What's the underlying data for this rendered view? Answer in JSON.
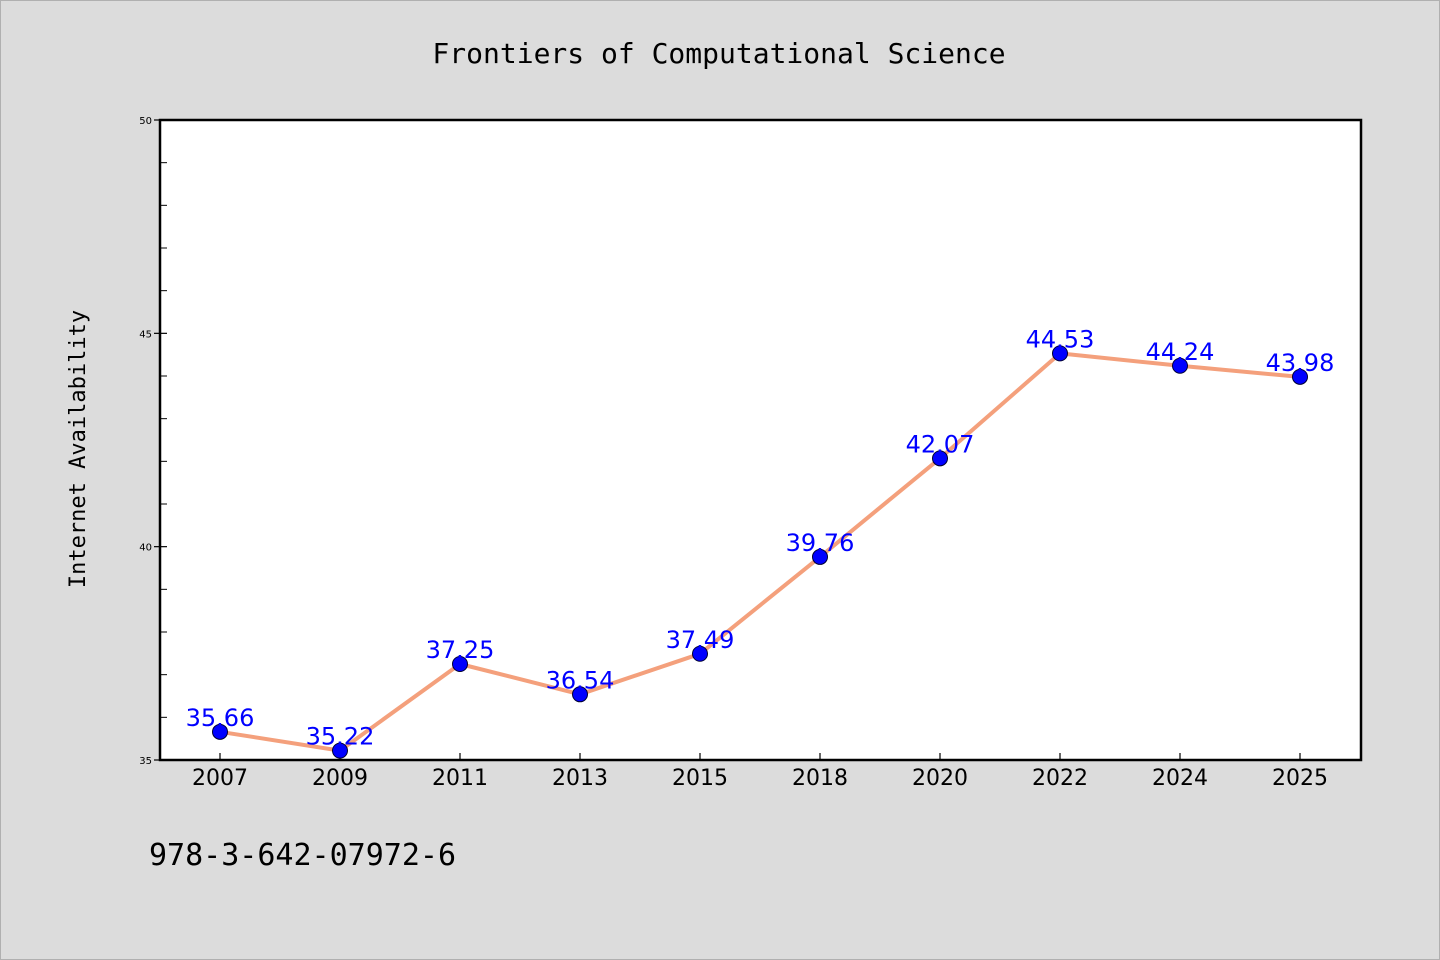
{
  "chart_data": {
    "type": "line",
    "title": "Frontiers of Computational Science",
    "ylabel": "Internet Availability",
    "xlabel": "",
    "categories": [
      "2007",
      "2009",
      "2011",
      "2013",
      "2015",
      "2018",
      "2020",
      "2022",
      "2024",
      "2025"
    ],
    "series": [
      {
        "values": [
          35.66,
          35.22,
          37.25,
          36.54,
          37.49,
          39.76,
          42.07,
          44.53,
          44.24,
          43.98
        ]
      }
    ],
    "data_labels": [
      "35.66",
      "35.22",
      "37.25",
      "36.54",
      "37.49",
      "39.76",
      "42.07",
      "44.53",
      "44.24",
      "43.98"
    ],
    "ylim": [
      35,
      50
    ],
    "y_ticks": [
      "35",
      "40",
      "45",
      "50"
    ],
    "grid": false,
    "colors": {
      "line": "#f4a07c",
      "marker": "#0000ff",
      "label": "#0000ff",
      "background": "#dcdcdc",
      "plot_background": "#ffffff"
    }
  },
  "footer": {
    "isbn": "978-3-642-07972-6"
  }
}
